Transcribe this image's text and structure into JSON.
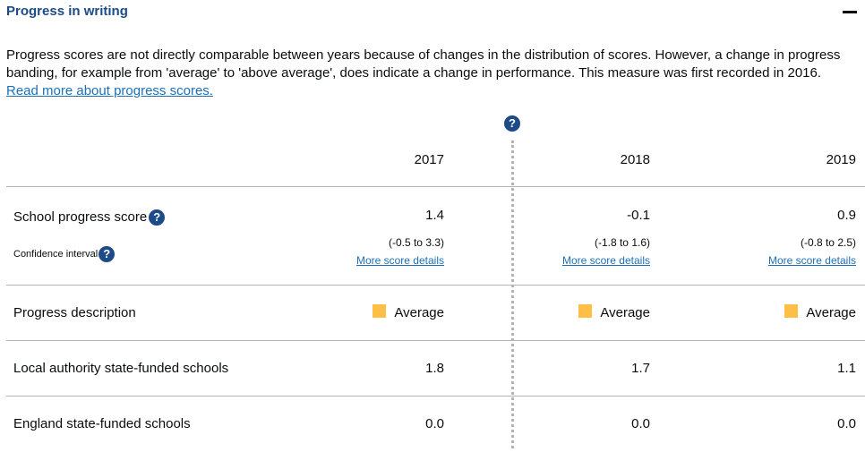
{
  "section": {
    "title": "Progress in writing"
  },
  "intro": {
    "text": "Progress scores are not directly comparable between years because of changes in the distribution of scores. However, a change in progress banding, for example from 'average' to 'above average', does indicate a change in performance. This measure was first recorded in 2016.",
    "link": "Read more about progress scores."
  },
  "help_icon_glyph": "?",
  "years": [
    "2017",
    "2018",
    "2019"
  ],
  "rows": {
    "school_progress_label": "School progress score",
    "confidence_label": "Confidence interval",
    "progress_desc_label": "Progress description",
    "la_label": "Local authority state-funded schools",
    "england_label": "England state-funded schools"
  },
  "scores": [
    "1.4",
    "-0.1",
    "0.9"
  ],
  "confidence_intervals": [
    "(-0.5 to 3.3)",
    "(-1.8 to 1.6)",
    "(-0.8 to 2.5)"
  ],
  "more_details_label": "More score details",
  "descriptions": [
    "Average",
    "Average",
    "Average"
  ],
  "description_color": "#ffbf47",
  "la_values": [
    "1.8",
    "1.7",
    "1.1"
  ],
  "england_values": [
    "0.0",
    "0.0",
    "0.0"
  ],
  "colors": {
    "title": "#1d4b87",
    "link": "#1d70b8",
    "help_icon": "#1d4b87",
    "divider": "#b1b4b6"
  }
}
